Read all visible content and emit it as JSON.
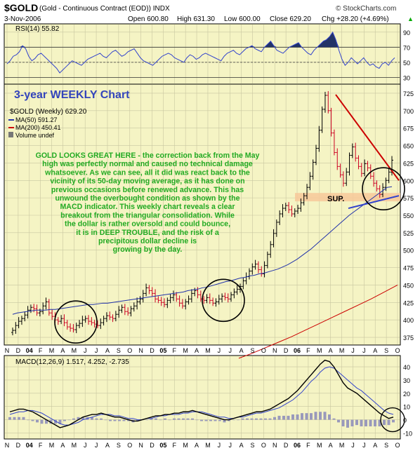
{
  "header": {
    "symbol": "$GOLD",
    "description": "(Gold - Continuous Contract (EOD))  INDX",
    "credit": "© StockCharts.com",
    "date": "3-Nov-2006",
    "open": "Open 600.80",
    "high": "High 631.30",
    "low": "Low 600.00",
    "close": "Close 629.20",
    "change": "Chg +28.20 (+4.69%)",
    "change_arrow": "▲"
  },
  "chart_title": "3-year WEEKLY Chart",
  "annotation_lines": [
    "GOLD LOOKS GREAT HERE - the correction back from the May",
    "high was perfectly normal and caused no technical damage",
    "whatsoever. As we can see, all it did was react back to the",
    "vicinity of its 50-day moving average, as it has done on",
    "previous occasions before renewed advance. This has",
    "unwound the overbought condition as shown by the",
    "MACD indicator. This weekly chart reveals a clear",
    "breakout from the triangular consolidation. While",
    "the dollar is rather oversold and could bounce,",
    "it is in DEEP TROUBLE, and the risk of a",
    "precipitous dollar decline is",
    "growing by the day."
  ],
  "support_label": "SUP.",
  "colors": {
    "panel_bg": "#f5f4c4",
    "grid": "#c8c6a0",
    "up_bar": "#000000",
    "down_bar": "#cc0022",
    "ma50": "#2233aa",
    "ma200": "#cc0000",
    "trend_upper": "#cc0000",
    "trend_lower": "#3344cc",
    "annotation": "#22aa22",
    "title": "#3344bb",
    "support_band": "#f7c89a"
  },
  "chart_data": [
    {
      "type": "line",
      "name_panel": "rsi",
      "label": "RSI(14) 55.82",
      "y_ticks": [
        90,
        70,
        50,
        30
      ],
      "ylim": [
        22,
        100
      ],
      "reference_lines": [
        70,
        30
      ],
      "values": [
        48,
        52,
        58,
        60,
        64,
        72,
        68,
        58,
        52,
        55,
        60,
        62,
        58,
        54,
        50,
        46,
        42,
        36,
        40,
        44,
        48,
        52,
        50,
        48,
        46,
        50,
        54,
        56,
        58,
        60,
        62,
        58,
        56,
        60,
        64,
        66,
        62,
        58,
        60,
        64,
        66,
        68,
        62,
        56,
        52,
        50,
        48,
        46,
        50,
        54,
        58,
        60,
        62,
        60,
        56,
        54,
        52,
        50,
        56,
        60,
        58,
        54,
        56,
        60,
        62,
        60,
        58,
        56,
        54,
        52,
        58,
        62,
        64,
        66,
        62,
        60,
        64,
        68,
        70,
        72,
        68,
        66,
        64,
        70,
        74,
        78,
        72,
        66,
        64,
        62,
        66,
        70,
        72,
        74,
        76,
        70,
        66,
        62,
        60,
        66,
        70,
        74,
        78,
        80,
        84,
        90,
        80,
        66,
        54,
        46,
        50,
        56,
        52,
        48,
        52,
        56,
        50,
        46,
        48,
        44,
        42,
        48,
        50,
        46,
        52,
        56
      ]
    },
    {
      "type": "bar",
      "name_panel": "price",
      "title": "$GOLD (Weekly) 629.20",
      "legend": [
        "MA(50) 591.27",
        "MA(200) 450.41",
        "Volume undef"
      ],
      "y_ticks": [
        725,
        700,
        675,
        650,
        625,
        600,
        575,
        550,
        525,
        500,
        475,
        450,
        425,
        400,
        375
      ],
      "ylim": [
        365,
        737
      ],
      "x_labels": [
        "N",
        "D",
        "04",
        "F",
        "M",
        "A",
        "M",
        "J",
        "J",
        "A",
        "S",
        "O",
        "N",
        "D",
        "05",
        "F",
        "M",
        "A",
        "M",
        "J",
        "J",
        "A",
        "S",
        "O",
        "N",
        "D",
        "06",
        "F",
        "M",
        "A",
        "M",
        "J",
        "J",
        "A",
        "S",
        "O"
      ],
      "closes": [
        385,
        392,
        398,
        402,
        407,
        414,
        418,
        416,
        410,
        412,
        420,
        426,
        410,
        405,
        400,
        398,
        402,
        396,
        390,
        388,
        386,
        392,
        395,
        400,
        402,
        398,
        396,
        394,
        392,
        396,
        402,
        406,
        404,
        402,
        408,
        414,
        418,
        412,
        410,
        416,
        420,
        426,
        430,
        438,
        446,
        442,
        438,
        430,
        428,
        425,
        422,
        428,
        432,
        436,
        430,
        424,
        420,
        426,
        430,
        438,
        442,
        436,
        430,
        428,
        432,
        428,
        424,
        426,
        430,
        434,
        432,
        430,
        436,
        440,
        444,
        448,
        456,
        462,
        470,
        476,
        480,
        472,
        466,
        478,
        494,
        508,
        524,
        540,
        552,
        560,
        564,
        558,
        552,
        556,
        560,
        568,
        578,
        590,
        606,
        626,
        646,
        672,
        702,
        722,
        700,
        668,
        640,
        620,
        608,
        596,
        612,
        636,
        648,
        632,
        620,
        610,
        624,
        618,
        606,
        596,
        588,
        580,
        590,
        600,
        612,
        629
      ],
      "ma50": [
        408,
        410,
        411,
        412,
        413,
        414,
        414,
        414,
        415,
        415,
        416,
        417,
        418,
        419,
        420,
        421,
        422,
        422,
        423,
        424,
        424,
        425,
        426,
        427,
        428,
        429,
        430,
        431,
        432,
        433,
        434,
        435,
        436,
        437,
        438,
        439,
        440,
        442,
        443,
        444,
        446,
        447,
        449,
        451,
        453,
        455,
        456,
        458,
        460,
        461,
        463,
        464,
        466,
        467,
        469,
        471,
        473,
        476,
        479,
        483,
        487,
        492,
        497,
        502,
        508,
        514,
        520,
        526,
        532,
        538,
        544,
        550,
        555,
        560,
        565,
        570,
        575,
        580,
        585,
        590,
        591
      ],
      "ma50_offset": 45,
      "ma200": [
        345,
        352,
        360,
        368,
        376,
        385,
        394,
        403,
        412,
        421,
        430,
        440,
        450
      ],
      "ma200_x_start": 26.6,
      "ma200_x_end": 49.6,
      "trend_upper": [
        [
          59.2,
          723
        ],
        [
          63.4,
          600
        ]
      ],
      "trend_lower": [
        [
          54.1,
          560
        ],
        [
          63.4,
          578
        ]
      ],
      "support_zone": [
        570,
        582
      ]
    },
    {
      "type": "line",
      "name_panel": "macd",
      "label": "MACD(12,26,9) 1.517, 4.252, -2.735",
      "y_ticks": [
        40,
        30,
        20,
        10,
        0,
        -10
      ],
      "ylim": [
        -14,
        48
      ],
      "macd": [
        6,
        7,
        8,
        8,
        7,
        6,
        4,
        2,
        0,
        -2,
        -4,
        -6,
        -5,
        -4,
        -2,
        0,
        2,
        3,
        4,
        4,
        5,
        4,
        3,
        2,
        2,
        1,
        0,
        -1,
        -1,
        0,
        1,
        2,
        3,
        3,
        4,
        4,
        5,
        5,
        6,
        6,
        7,
        6,
        5,
        4,
        3,
        2,
        1,
        0,
        0,
        1,
        2,
        3,
        4,
        5,
        6,
        6,
        7,
        8,
        10,
        12,
        14,
        16,
        19,
        22,
        26,
        30,
        34,
        38,
        42,
        45,
        44,
        40,
        34,
        28,
        24,
        22,
        20,
        17,
        14,
        11,
        8,
        5,
        3,
        1,
        2
      ],
      "signal": [
        4,
        5,
        6,
        6,
        7,
        7,
        6,
        5,
        3,
        1,
        -1,
        -3,
        -4,
        -4,
        -3,
        -2,
        0,
        1,
        2,
        3,
        4,
        4,
        4,
        3,
        3,
        2,
        1,
        1,
        0,
        0,
        1,
        1,
        2,
        3,
        3,
        4,
        4,
        4,
        5,
        5,
        6,
        6,
        6,
        5,
        4,
        3,
        2,
        2,
        1,
        1,
        2,
        2,
        3,
        4,
        5,
        5,
        6,
        7,
        8,
        9,
        11,
        13,
        15,
        18,
        21,
        25,
        29,
        32,
        36,
        39,
        40,
        39,
        36,
        33,
        30,
        27,
        24,
        22,
        19,
        16,
        13,
        10,
        7,
        5,
        4
      ],
      "histogram": [
        2,
        2,
        2,
        2,
        0,
        -1,
        -2,
        -3,
        -3,
        -3,
        -3,
        -3,
        -1,
        0,
        1,
        2,
        2,
        2,
        2,
        1,
        1,
        0,
        -1,
        -1,
        -1,
        -1,
        -1,
        -2,
        -1,
        0,
        0,
        1,
        1,
        0,
        1,
        0,
        1,
        1,
        1,
        1,
        1,
        0,
        -1,
        -1,
        -1,
        -1,
        -1,
        -2,
        -1,
        0,
        0,
        1,
        1,
        1,
        1,
        1,
        1,
        1,
        2,
        3,
        3,
        3,
        4,
        4,
        5,
        5,
        5,
        6,
        6,
        6,
        4,
        1,
        -2,
        -5,
        -6,
        -5,
        -4,
        -5,
        -5,
        -5,
        -5,
        -5,
        -4,
        -4,
        -2
      ]
    }
  ]
}
